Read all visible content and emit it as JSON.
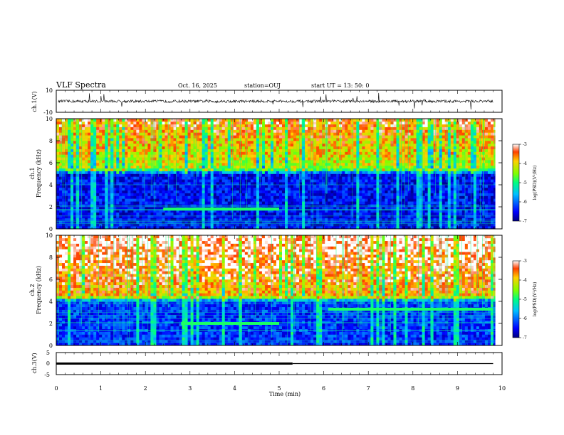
{
  "header": {
    "title": "VLF Spectra",
    "date": "Oct. 16, 2025",
    "station": "station=OUJ",
    "start": "start  UT  =   13: 50: 0"
  },
  "chart_data": [
    {
      "type": "line",
      "panel": "ch1-waveform",
      "ylabel": "ch.1(V)",
      "ylim": [
        -10,
        10
      ],
      "yticks": [
        "10",
        "-10"
      ],
      "baseline": 0
    },
    {
      "type": "heatmap",
      "panel": "ch1-spectrogram",
      "ylabel_line1": "ch.1",
      "ylabel_line2": "Frequency (kHz)",
      "ylim": [
        0,
        10
      ],
      "yticks": [
        "0",
        "2",
        "4",
        "6",
        "8",
        "10"
      ],
      "colorbar": {
        "label": "log(PSD)(V²/Hz)",
        "ticks": [
          "-3",
          "-4",
          "-5",
          "-6",
          "-7"
        ],
        "range": [
          -7,
          -3
        ]
      },
      "bands": [
        {
          "name": "noise-floor",
          "from_khz": 0,
          "to_khz": 5,
          "level": -6.5
        },
        {
          "name": "sferics",
          "from_khz": 5.5,
          "to_khz": 10,
          "level": -4.3
        }
      ],
      "tone": {
        "freq_khz": 1.8,
        "t_start_min": 2.4,
        "t_end_min": 5.0
      }
    },
    {
      "type": "heatmap",
      "panel": "ch2-spectrogram",
      "ylabel_line1": "ch.2",
      "ylabel_line2": "Frequency (kHz)",
      "ylim": [
        0,
        10
      ],
      "yticks": [
        "0",
        "2",
        "4",
        "6",
        "8",
        "10"
      ],
      "colorbar": {
        "label": "log(PSD)(V²/Hz)",
        "ticks": [
          "-3",
          "-4",
          "-5",
          "-6",
          "-7"
        ],
        "range": [
          -7,
          -3
        ]
      },
      "bands": [
        {
          "name": "noise-floor",
          "from_khz": 0,
          "to_khz": 4,
          "level": -6.3
        },
        {
          "name": "sferics",
          "from_khz": 4.5,
          "to_khz": 10,
          "level": -3.8
        }
      ],
      "tones": [
        {
          "freq_khz": 2.0,
          "t_start_min": 2.8,
          "t_end_min": 5.0
        },
        {
          "freq_khz": 3.3,
          "t_start_min": 6.1,
          "t_end_min": 9.8
        }
      ]
    },
    {
      "type": "line",
      "panel": "ch3-waveform",
      "ylabel": "ch.3(V)",
      "ylim": [
        -5,
        5
      ],
      "yticks": [
        "5",
        "0",
        "-5"
      ],
      "segments": [
        {
          "t_start_min": 0,
          "t_end_min": 5.3,
          "value": 0,
          "weight": "thick"
        },
        {
          "t_start_min": 5.3,
          "t_end_min": 9.8,
          "value": 0,
          "weight": "thin"
        }
      ]
    }
  ],
  "xaxis": {
    "label": "Time (min)",
    "range": [
      0,
      10
    ],
    "ticks": [
      "0",
      "1",
      "2",
      "3",
      "4",
      "5",
      "6",
      "7",
      "8",
      "9",
      "10"
    ]
  }
}
